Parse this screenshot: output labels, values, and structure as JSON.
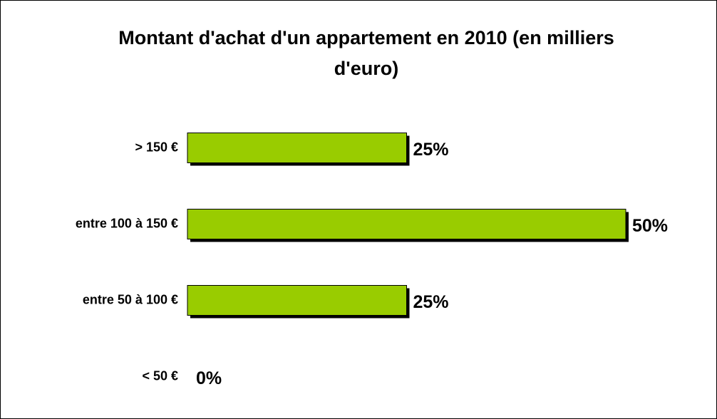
{
  "chart_data": {
    "type": "bar",
    "orientation": "horizontal",
    "title": "Montant d'achat d'un appartement en 2010 (en milliers d'euro)",
    "categories": [
      "> 150 €",
      "entre 100 à 150 €",
      "entre 50 à 100 €",
      "< 50 €"
    ],
    "values": [
      25,
      50,
      25,
      0
    ],
    "value_labels": [
      "25%",
      "50%",
      "25%",
      "0%"
    ],
    "color": "#99cc00"
  }
}
